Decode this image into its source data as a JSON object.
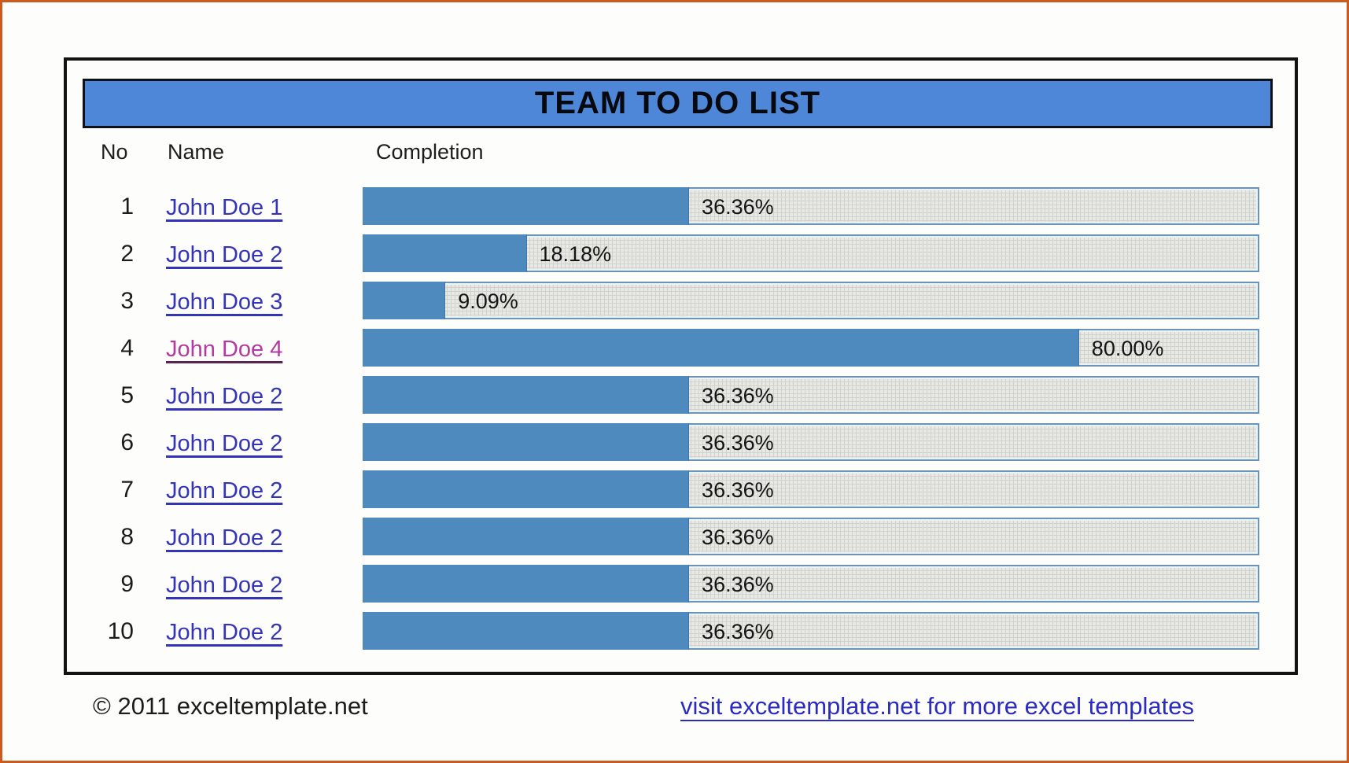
{
  "window": {
    "title": "TEAM TO DO LIST"
  },
  "table": {
    "headers": {
      "no": "No",
      "name": "Name",
      "completion": "Completion"
    },
    "rows": [
      {
        "no": "1",
        "name": "John Doe 1",
        "completion_pct": 36.36,
        "completion_label": "36.36%",
        "link_visited": false
      },
      {
        "no": "2",
        "name": "John Doe 2",
        "completion_pct": 18.18,
        "completion_label": "18.18%",
        "link_visited": false
      },
      {
        "no": "3",
        "name": "John Doe 3",
        "completion_pct": 9.09,
        "completion_label": "9.09%",
        "link_visited": false
      },
      {
        "no": "4",
        "name": "John Doe 4",
        "completion_pct": 80.0,
        "completion_label": "80.00%",
        "link_visited": true
      },
      {
        "no": "5",
        "name": "John Doe 2",
        "completion_pct": 36.36,
        "completion_label": "36.36%",
        "link_visited": false
      },
      {
        "no": "6",
        "name": "John Doe 2",
        "completion_pct": 36.36,
        "completion_label": "36.36%",
        "link_visited": false
      },
      {
        "no": "7",
        "name": "John Doe 2",
        "completion_pct": 36.36,
        "completion_label": "36.36%",
        "link_visited": false
      },
      {
        "no": "8",
        "name": "John Doe 2",
        "completion_pct": 36.36,
        "completion_label": "36.36%",
        "link_visited": false
      },
      {
        "no": "9",
        "name": "John Doe 2",
        "completion_pct": 36.36,
        "completion_label": "36.36%",
        "link_visited": false
      },
      {
        "no": "10",
        "name": "John Doe 2",
        "completion_pct": 36.36,
        "completion_label": "36.36%",
        "link_visited": false
      }
    ]
  },
  "footer": {
    "copyright": "© 2011 exceltemplate.net",
    "link": "visit exceltemplate.net for more excel templates"
  },
  "colors": {
    "accent_blue_title": "#4e86d8",
    "bar_fill_blue": "#4e8abd",
    "link_blue": "#3434b8",
    "link_visited_purple": "#b23aa0",
    "footer_link_blue": "#2b2bbf",
    "outer_border_orange": "#cb5a1e"
  }
}
